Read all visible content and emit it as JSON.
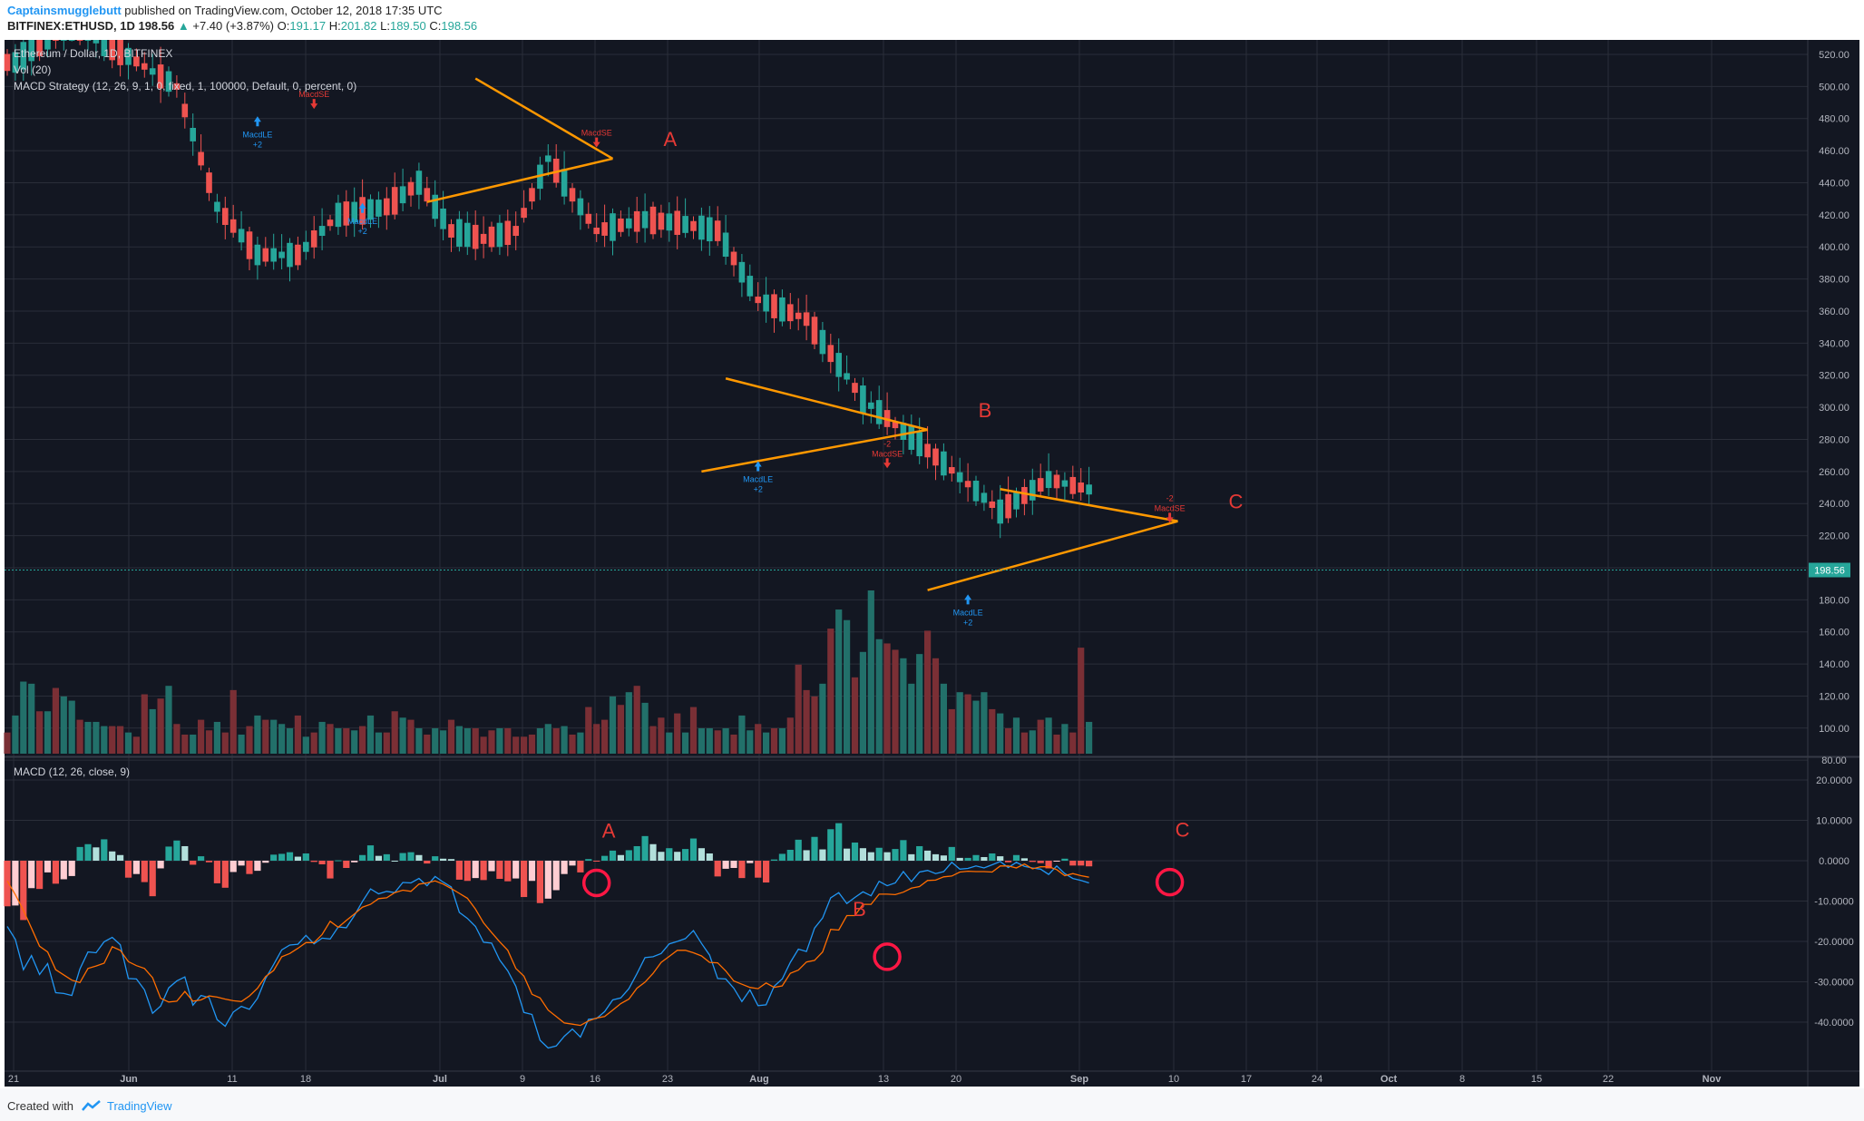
{
  "header": {
    "author": "Captainsmugglebutt",
    "published_text": "published on TradingView.com, October 12, 2018 17:35 UTC",
    "symbol": "BITFINEX:ETHUSD, 1D",
    "last": "198.56",
    "change": "+7.40 (+3.87%)",
    "o_label": "O:",
    "o_value": "191.17",
    "h_label": "H:",
    "h_value": "201.82",
    "l_label": "L:",
    "l_value": "189.50",
    "c_label": "C:",
    "c_value": "198.56"
  },
  "legend": {
    "line1": "Ethereum / Dollar, 1D, BITFINEX",
    "line2": "Vol (20)",
    "line3": "MACD Strategy (12, 26, 9, 1, 0, fixed, 1, 100000, Default, 0, percent, 0)",
    "macd": "MACD (12, 26, close, 9)"
  },
  "footer": {
    "created_with": "Created with",
    "brand": "TradingView"
  },
  "colors": {
    "background": "#131722",
    "grid": "#2a2e39",
    "up": "#26a69a",
    "down": "#ef5350",
    "up_vol": "#22706a",
    "down_vol": "#7a2f35",
    "trendline": "#ff9800",
    "annotation": "#e53935",
    "macd_line": "#2196f3",
    "signal_line": "#ff6d00",
    "long_signal": "#2196f3",
    "short_signal": "#e53935",
    "price_badge": "#26a69a"
  },
  "chart_data": [
    {
      "type": "candlestick",
      "title": "Ethereum / Dollar, 1D, BITFINEX",
      "x_ticks": [
        "21",
        "Jun",
        "11",
        "18",
        "Jul",
        "9",
        "16",
        "23",
        "Aug",
        "13",
        "20",
        "Sep",
        "10",
        "17",
        "24",
        "Oct",
        "8",
        "15",
        "22",
        "Nov"
      ],
      "y_ticks": [
        "520.00",
        "500.00",
        "480.00",
        "460.00",
        "440.00",
        "420.00",
        "400.00",
        "380.00",
        "360.00",
        "340.00",
        "320.00",
        "300.00",
        "280.00",
        "260.00",
        "240.00",
        "220.00",
        "200.00",
        "180.00",
        "160.00",
        "140.00",
        "120.00",
        "100.00",
        "80.00"
      ],
      "ylim": [
        80,
        525
      ],
      "last_price": "198.56",
      "patterns": [
        {
          "label": "A",
          "upper": [
            [
              "Jul 17",
              505
            ],
            [
              "Aug 3",
              455
            ]
          ],
          "lower": [
            [
              "Jul 11",
              428
            ],
            [
              "Aug 3",
              455
            ]
          ]
        },
        {
          "label": "B",
          "upper": [
            [
              "Aug 17",
              318
            ],
            [
              "Sep 11",
              286
            ]
          ],
          "lower": [
            [
              "Aug 14",
              260
            ],
            [
              "Sep 11",
              286
            ]
          ]
        },
        {
          "label": "C",
          "upper": [
            [
              "Sep 20",
              249
            ],
            [
              "Oct 12",
              229
            ]
          ],
          "lower": [
            [
              "Sep 11",
              186
            ],
            [
              "Oct 12",
              229
            ]
          ]
        }
      ],
      "signals": [
        {
          "name": "MacdLE",
          "qty": "+2",
          "direction": "long",
          "date": "Jun 20",
          "price": 478
        },
        {
          "name": "MacdSE",
          "qty": "",
          "direction": "short",
          "date": "Jun 27",
          "price": 486
        },
        {
          "name": "MacdLE",
          "qty": "+2",
          "direction": "long",
          "date": "Jul 3",
          "price": 424
        },
        {
          "name": "MacdSE",
          "qty": "",
          "direction": "short",
          "date": "Aug 1",
          "price": 462
        },
        {
          "name": "MacdLE",
          "qty": "+2",
          "direction": "long",
          "date": "Aug 21",
          "price": 263
        },
        {
          "name": "MacdSE",
          "qty": "-2",
          "direction": "short",
          "date": "Sep 6",
          "price": 262
        },
        {
          "name": "MacdLE",
          "qty": "+2",
          "direction": "long",
          "date": "Sep 16",
          "price": 180
        },
        {
          "name": "MacdSE",
          "qty": "-2",
          "direction": "short",
          "date": "Oct 11",
          "price": 228
        }
      ]
    },
    {
      "type": "bar",
      "title": "Vol (20)",
      "note": "volume bars, relative scale",
      "values": [
        10,
        18,
        34,
        33,
        20,
        20,
        31,
        27,
        25,
        16,
        15,
        15,
        13,
        13,
        13,
        10,
        8,
        28,
        21,
        26,
        32,
        14,
        9,
        9,
        16,
        11,
        15,
        10,
        30,
        9,
        13,
        18,
        16,
        16,
        14,
        12,
        18,
        8,
        10,
        15,
        14,
        12,
        12,
        11,
        13,
        18,
        10,
        10,
        20,
        17,
        16,
        12,
        9,
        12,
        11,
        16,
        13,
        12,
        12,
        8,
        11,
        12,
        12,
        8,
        8,
        9,
        12,
        14,
        12,
        13,
        9,
        10,
        22,
        14,
        16,
        27,
        23,
        29,
        32,
        24,
        13,
        17,
        10,
        19,
        10,
        22,
        12,
        12,
        11,
        12,
        9,
        18,
        11,
        14,
        10,
        12,
        12,
        17,
        42,
        30,
        27,
        33,
        59,
        68,
        63,
        36,
        48,
        77,
        54,
        52,
        49,
        45,
        33,
        47,
        58,
        45,
        33,
        21,
        29,
        28,
        25,
        29,
        21,
        19,
        12,
        17,
        10,
        11,
        16,
        17,
        9,
        14,
        10,
        50,
        15
      ],
      "up": [
        false,
        true,
        true,
        true,
        false,
        true,
        false,
        true,
        true,
        false,
        true,
        true,
        true,
        false,
        false,
        true,
        false,
        false,
        true,
        false,
        true,
        false,
        false,
        true,
        false,
        false,
        true,
        false,
        false,
        true,
        false,
        true,
        false,
        true,
        true,
        true,
        false,
        true,
        false,
        true,
        false,
        true,
        false,
        true,
        false,
        true,
        true,
        false,
        false,
        true,
        false,
        true,
        false,
        true,
        true,
        false,
        true,
        true,
        false,
        false,
        false,
        true,
        false,
        false,
        false,
        false,
        true,
        true,
        false,
        true,
        false,
        true,
        false,
        false,
        false,
        true,
        false,
        true,
        false,
        true,
        false,
        false,
        true,
        false,
        true,
        false,
        true,
        true,
        false,
        true,
        false,
        true,
        true,
        false,
        true,
        false,
        true,
        false,
        false,
        false,
        false,
        true,
        false,
        true,
        true,
        false,
        true,
        true,
        true,
        false,
        false,
        true,
        true,
        true,
        false,
        false,
        true,
        false,
        true,
        false,
        true,
        true,
        false,
        true,
        false,
        true,
        false,
        true,
        false,
        true,
        false,
        true,
        false,
        false,
        true
      ]
    },
    {
      "type": "line",
      "title": "MACD (12, 26, close, 9)",
      "y_ticks": [
        "20.0000",
        "10.0000",
        "0.0000",
        "-10.0000",
        "-20.0000",
        "-30.0000",
        "-40.0000"
      ],
      "ylim": [
        -48,
        23
      ],
      "series": [
        {
          "name": "MACD",
          "values": [
            -16.3,
            -19.5,
            -27.0,
            -23.5,
            -28.2,
            -25.5,
            -32.7,
            -32.9,
            -33.4,
            -26.8,
            -22.6,
            -22.8,
            -20.1,
            -19.0,
            -20.8,
            -29.2,
            -29.3,
            -32.0,
            -37.8,
            -36.0,
            -31.5,
            -29.8,
            -28.8,
            -35.8,
            -33.4,
            -33.9,
            -39.4,
            -41.0,
            -37.5,
            -36.1,
            -36.8,
            -34.1,
            -29.2,
            -25.7,
            -22.1,
            -20.9,
            -20.7,
            -18.5,
            -20.6,
            -19.2,
            -19.4,
            -16.4,
            -16.6,
            -13.6,
            -10.1,
            -7.0,
            -8.2,
            -7.6,
            -7.9,
            -5.4,
            -5.5,
            -4.4,
            -6.2,
            -3.9,
            -5.3,
            -6.5,
            -12.8,
            -14.3,
            -16.3,
            -20.2,
            -20.4,
            -24.6,
            -27.3,
            -31.1,
            -37.6,
            -38.1,
            -44.5,
            -46.4,
            -45.9,
            -43.5,
            -41.7,
            -43.7,
            -39.3,
            -39.1,
            -37.4,
            -34.5,
            -34.0,
            -31.7,
            -28.0,
            -24.0,
            -23.8,
            -23.0,
            -20.6,
            -20.0,
            -19.3,
            -17.3,
            -20.5,
            -23.4,
            -29.2,
            -29.3,
            -31.6,
            -34.9,
            -32.0,
            -35.9,
            -35.7,
            -31.1,
            -29.3,
            -25.2,
            -21.9,
            -22.5,
            -16.7,
            -14.2,
            -9.2,
            -7.9,
            -10.6,
            -9.1,
            -7.7,
            -8.7,
            -5.1,
            -6.2,
            -5.5,
            -2.7,
            -5.2,
            -2.8,
            -2.4,
            -3.2,
            -2.7,
            -0.4,
            -2.1,
            -1.9,
            -1.3,
            -1.8,
            -1.0,
            -0.2,
            -1.7,
            -0.4,
            -1.4,
            -1.8,
            -2.1,
            -3.4,
            -1.3,
            -3.2,
            -4.4,
            -4.9,
            -5.5
          ]
        },
        {
          "name": "Signal",
          "values": [
            -5.0,
            -8.4,
            -12.3,
            -16.7,
            -21.2,
            -22.6,
            -27.0,
            -28.3,
            -29.6,
            -30.2,
            -26.7,
            -26.1,
            -25.4,
            -21.3,
            -22.2,
            -25.0,
            -26.0,
            -26.7,
            -29.0,
            -34.1,
            -35.0,
            -34.8,
            -32.4,
            -34.8,
            -34.5,
            -33.5,
            -33.8,
            -34.3,
            -34.7,
            -34.9,
            -33.5,
            -31.6,
            -28.7,
            -27.2,
            -23.8,
            -23.0,
            -21.7,
            -20.3,
            -20.3,
            -18.3,
            -15.0,
            -16.5,
            -14.8,
            -13.2,
            -11.5,
            -10.8,
            -9.4,
            -9.2,
            -7.9,
            -7.3,
            -7.6,
            -5.8,
            -5.5,
            -5.0,
            -5.8,
            -6.9,
            -8.1,
            -9.3,
            -12.0,
            -15.4,
            -17.8,
            -20.1,
            -22.2,
            -26.7,
            -28.6,
            -33.1,
            -34.0,
            -37.0,
            -38.6,
            -40.2,
            -40.5,
            -40.8,
            -39.7,
            -39.0,
            -38.6,
            -37.0,
            -35.4,
            -34.3,
            -31.6,
            -30.1,
            -27.9,
            -25.2,
            -23.7,
            -22.2,
            -22.2,
            -22.8,
            -23.6,
            -25.2,
            -25.3,
            -27.3,
            -29.8,
            -30.6,
            -31.4,
            -31.7,
            -30.3,
            -31.4,
            -31.0,
            -27.9,
            -27.1,
            -25.1,
            -24.7,
            -22.6,
            -17.0,
            -17.2,
            -13.6,
            -13.6,
            -10.8,
            -10.8,
            -8.3,
            -8.3,
            -8.4,
            -7.8,
            -6.8,
            -6.4,
            -4.9,
            -4.8,
            -4.0,
            -3.8,
            -2.8,
            -2.6,
            -2.7,
            -2.7,
            -2.8,
            -1.3,
            -1.3,
            -1.8,
            -0.8,
            -2.0,
            -1.5,
            -1.5,
            -2.2,
            -3.7,
            -3.2,
            -3.7,
            -4.1
          ]
        }
      ],
      "histogram": [
        -11.3,
        -11.1,
        -14.7,
        -6.8,
        -7.0,
        -2.9,
        -5.7,
        -4.6,
        -3.8,
        3.4,
        4.1,
        3.3,
        5.3,
        2.3,
        1.4,
        -4.2,
        -3.3,
        -5.3,
        -8.8,
        -1.9,
        3.5,
        5.0,
        3.6,
        -1.0,
        1.1,
        -0.4,
        -5.6,
        -6.7,
        -2.8,
        -1.2,
        -3.3,
        -2.5,
        -0.5,
        1.5,
        1.7,
        2.1,
        1.0,
        1.8,
        -0.3,
        -0.9,
        -4.4,
        0.1,
        -1.8,
        -0.4,
        1.4,
        3.8,
        1.2,
        1.6,
        0.0,
        1.9,
        2.1,
        1.4,
        -0.7,
        1.1,
        0.5,
        0.4,
        -4.7,
        -5.0,
        -4.3,
        -4.8,
        -2.6,
        -4.5,
        -5.1,
        -4.4,
        -9.0,
        -5.0,
        -10.5,
        -9.4,
        -7.3,
        -3.3,
        -1.2,
        -2.9,
        0.4,
        -0.1,
        1.2,
        2.5,
        1.4,
        2.6,
        3.6,
        6.1,
        4.1,
        2.2,
        3.1,
        2.2,
        2.9,
        5.5,
        3.1,
        1.8,
        -3.9,
        -2.0,
        -1.8,
        -4.3,
        -0.6,
        -4.2,
        -5.4,
        0.3,
        1.7,
        2.7,
        5.2,
        2.6,
        5.9,
        2.8,
        7.8,
        9.3,
        3.0,
        4.5,
        3.1,
        2.1,
        3.2,
        2.1,
        2.9,
        5.1,
        1.6,
        3.6,
        2.5,
        1.6,
        1.3,
        3.4,
        0.7,
        0.7,
        1.4,
        0.9,
        1.8,
        1.1,
        -0.4,
        1.4,
        0.6,
        -0.3,
        -0.6,
        -1.9,
        -0.1,
        0.5,
        -1.2,
        -1.2,
        -1.4
      ],
      "crossover_markers": [
        {
          "label": "A",
          "date": "Aug 1",
          "value": -5.5
        },
        {
          "label": "B",
          "date": "Sep 6",
          "value": -23.8
        },
        {
          "label": "C",
          "date": "Oct 11",
          "value": -5.3
        }
      ]
    }
  ]
}
